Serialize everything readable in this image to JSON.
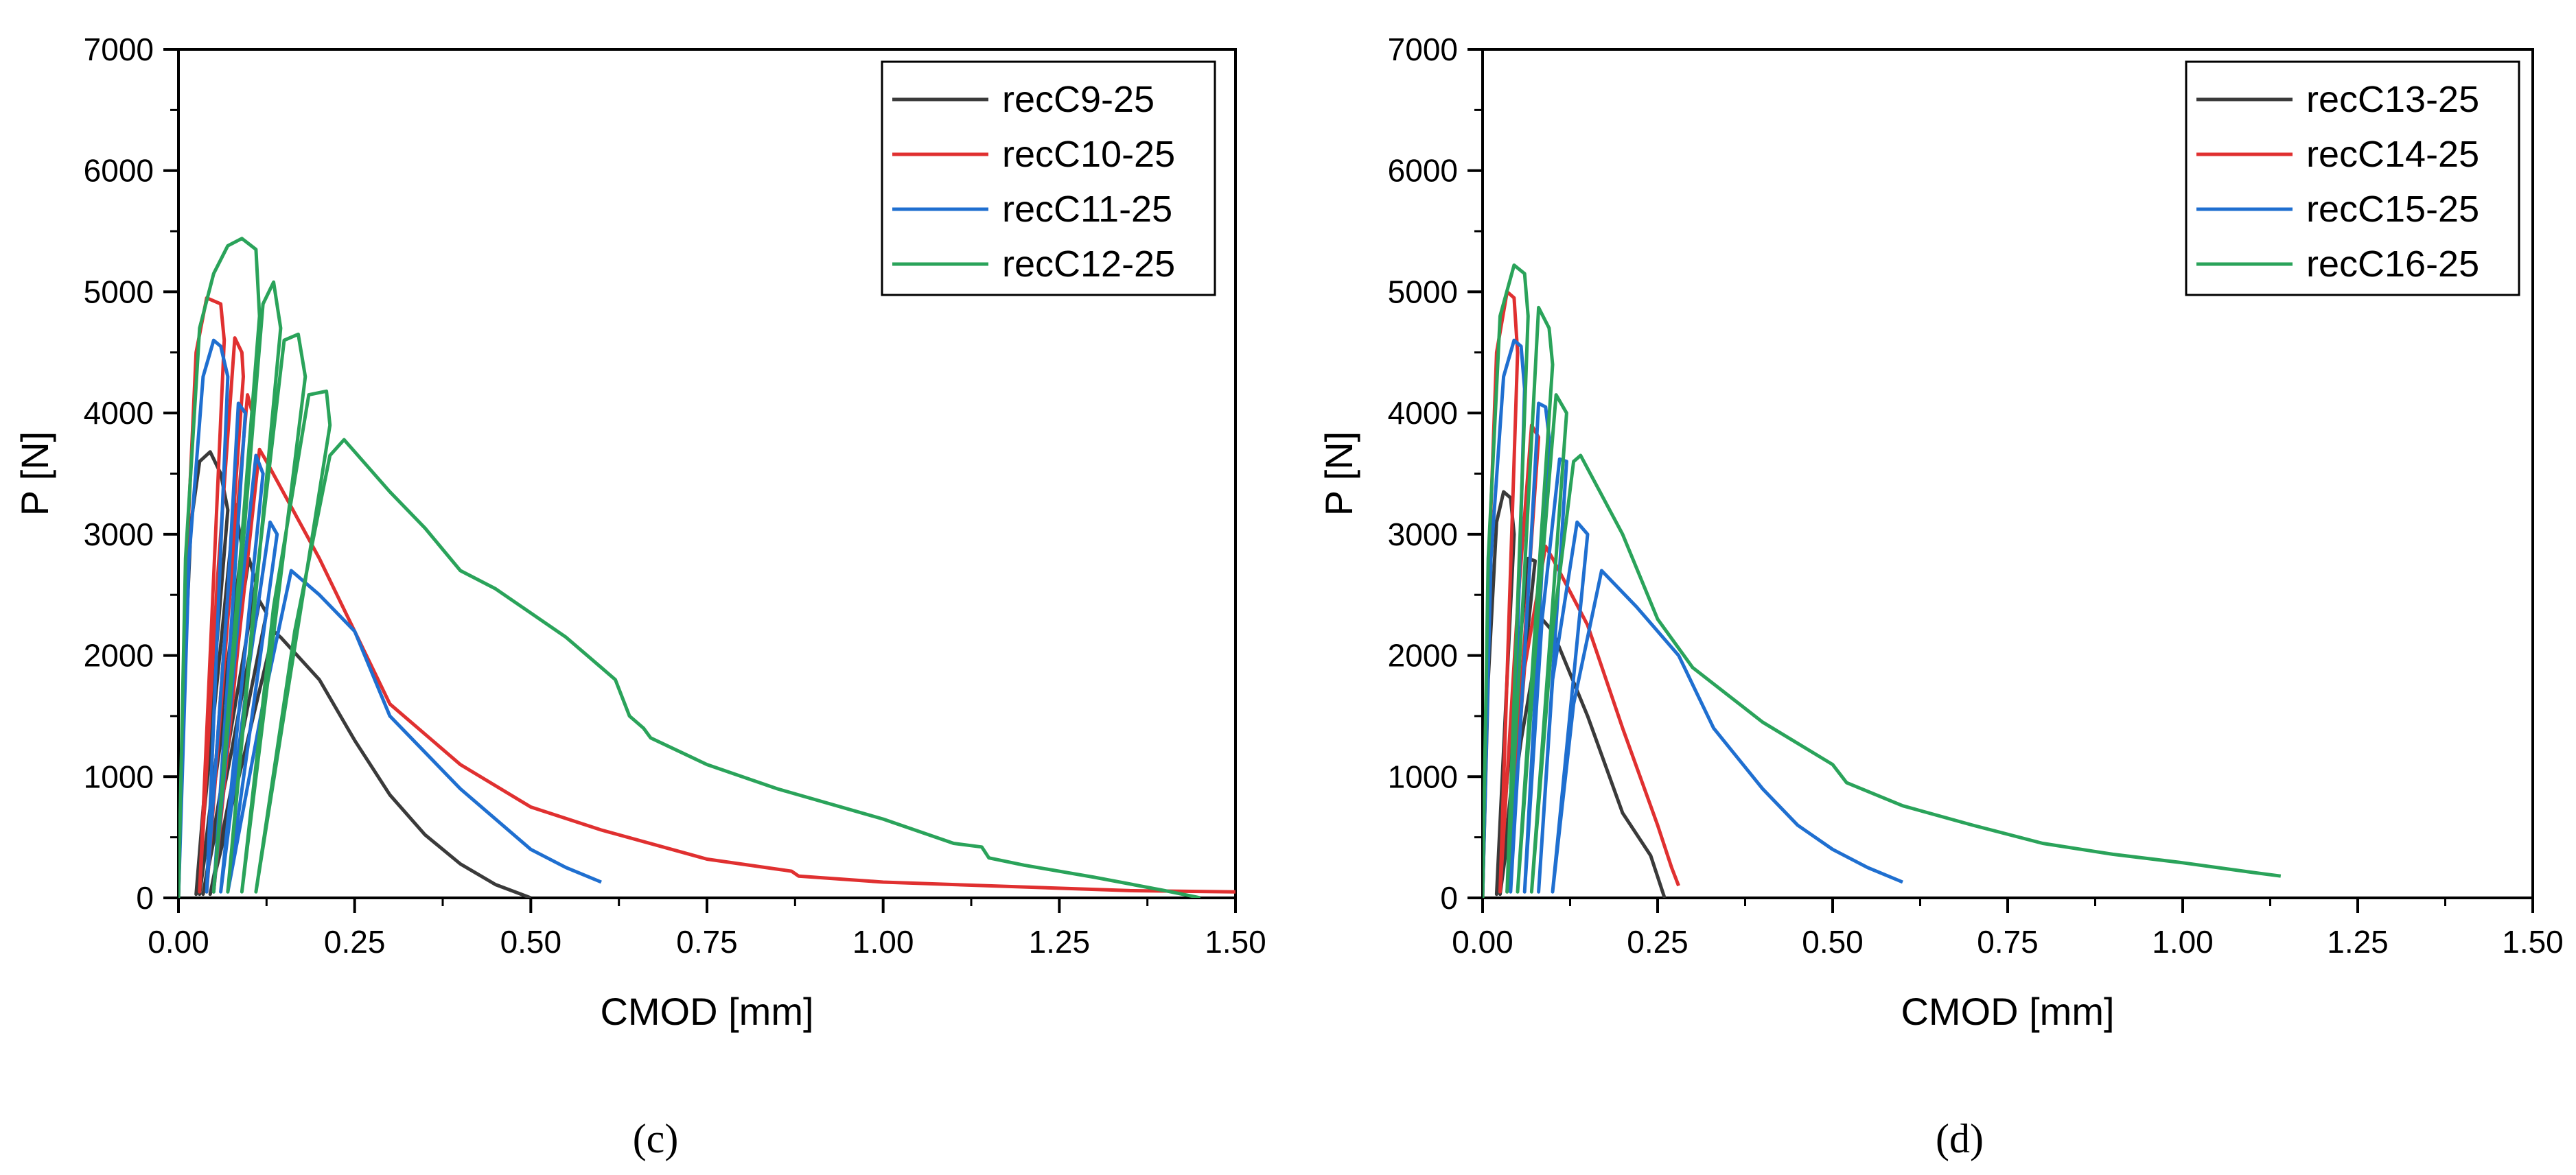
{
  "figure": {
    "panel_labels": [
      "(c)",
      "(d)"
    ]
  },
  "chart_data": [
    {
      "type": "line",
      "panel": "(c)",
      "xlabel": "CMOD [mm]",
      "ylabel": "P [N]",
      "xlim": [
        0,
        1.5
      ],
      "ylim": [
        0,
        7000
      ],
      "xticks": [
        0,
        0.25,
        0.5,
        0.75,
        1.0,
        1.25,
        1.5
      ],
      "xtick_labels": [
        "0.00",
        "0.25",
        "0.50",
        "0.75",
        "1.00",
        "1.25",
        "1.50"
      ],
      "yticks": [
        0,
        1000,
        2000,
        3000,
        4000,
        5000,
        6000,
        7000
      ],
      "ytick_labels": [
        "0",
        "1000",
        "2000",
        "3000",
        "4000",
        "5000",
        "6000",
        "7000"
      ],
      "legend_position": "top-right",
      "series": [
        {
          "name": "recC9-25",
          "color": "#3a3a3a",
          "points": [
            [
              0,
              0
            ],
            [
              0.008,
              1800
            ],
            [
              0.018,
              3100
            ],
            [
              0.03,
              3600
            ],
            [
              0.045,
              3680
            ],
            [
              0.06,
              3500
            ],
            [
              0.07,
              3200
            ],
            [
              0.025,
              30
            ],
            [
              0.05,
              1500
            ],
            [
              0.08,
              3250
            ],
            [
              0.09,
              2900
            ],
            [
              0.03,
              30
            ],
            [
              0.06,
              1300
            ],
            [
              0.1,
              2800
            ],
            [
              0.11,
              2600
            ],
            [
              0.035,
              30
            ],
            [
              0.075,
              1200
            ],
            [
              0.115,
              2450
            ],
            [
              0.125,
              2350
            ],
            [
              0.045,
              30
            ],
            [
              0.09,
              1100
            ],
            [
              0.135,
              2200
            ],
            [
              0.145,
              2150
            ],
            [
              0.2,
              1800
            ],
            [
              0.25,
              1300
            ],
            [
              0.3,
              850
            ],
            [
              0.35,
              520
            ],
            [
              0.4,
              280
            ],
            [
              0.45,
              110
            ],
            [
              0.5,
              0
            ]
          ]
        },
        {
          "name": "recC10-25",
          "color": "#e03030",
          "points": [
            [
              0,
              0
            ],
            [
              0.01,
              2600
            ],
            [
              0.025,
              4500
            ],
            [
              0.04,
              4950
            ],
            [
              0.06,
              4900
            ],
            [
              0.065,
              4600
            ],
            [
              0.03,
              50
            ],
            [
              0.055,
              2600
            ],
            [
              0.08,
              4620
            ],
            [
              0.09,
              4500
            ],
            [
              0.092,
              4300
            ],
            [
              0.04,
              50
            ],
            [
              0.07,
              2300
            ],
            [
              0.098,
              4150
            ],
            [
              0.105,
              4000
            ],
            [
              0.05,
              50
            ],
            [
              0.085,
              2100
            ],
            [
              0.115,
              3700
            ],
            [
              0.125,
              3600
            ],
            [
              0.2,
              2800
            ],
            [
              0.3,
              1600
            ],
            [
              0.4,
              1100
            ],
            [
              0.5,
              750
            ],
            [
              0.6,
              560
            ],
            [
              0.7,
              400
            ],
            [
              0.75,
              320
            ],
            [
              0.87,
              220
            ],
            [
              0.88,
              180
            ],
            [
              1.0,
              130
            ],
            [
              1.2,
              90
            ],
            [
              1.35,
              60
            ],
            [
              1.5,
              50
            ]
          ]
        },
        {
          "name": "recC11-25",
          "color": "#1f6fd0",
          "points": [
            [
              0,
              0
            ],
            [
              0.015,
              2800
            ],
            [
              0.035,
              4300
            ],
            [
              0.05,
              4600
            ],
            [
              0.06,
              4550
            ],
            [
              0.07,
              4300
            ],
            [
              0.04,
              50
            ],
            [
              0.07,
              2500
            ],
            [
              0.085,
              4080
            ],
            [
              0.095,
              4000
            ],
            [
              0.05,
              50
            ],
            [
              0.085,
              2300
            ],
            [
              0.11,
              3650
            ],
            [
              0.12,
              3500
            ],
            [
              0.06,
              50
            ],
            [
              0.1,
              1900
            ],
            [
              0.13,
              3100
            ],
            [
              0.14,
              3000
            ],
            [
              0.07,
              50
            ],
            [
              0.12,
              1600
            ],
            [
              0.16,
              2700
            ],
            [
              0.2,
              2500
            ],
            [
              0.25,
              2200
            ],
            [
              0.3,
              1500
            ],
            [
              0.4,
              900
            ],
            [
              0.5,
              400
            ],
            [
              0.55,
              250
            ],
            [
              0.6,
              130
            ]
          ]
        },
        {
          "name": "recC12-25",
          "color": "#2aa35a",
          "points": [
            [
              0,
              0
            ],
            [
              0.01,
              2800
            ],
            [
              0.03,
              4700
            ],
            [
              0.05,
              5150
            ],
            [
              0.07,
              5380
            ],
            [
              0.09,
              5440
            ],
            [
              0.11,
              5350
            ],
            [
              0.115,
              4800
            ],
            [
              0.05,
              50
            ],
            [
              0.09,
              2800
            ],
            [
              0.12,
              4900
            ],
            [
              0.135,
              5080
            ],
            [
              0.145,
              4700
            ],
            [
              0.07,
              50
            ],
            [
              0.11,
              2600
            ],
            [
              0.15,
              4600
            ],
            [
              0.17,
              4650
            ],
            [
              0.18,
              4300
            ],
            [
              0.09,
              50
            ],
            [
              0.135,
              2400
            ],
            [
              0.185,
              4150
            ],
            [
              0.21,
              4180
            ],
            [
              0.215,
              3900
            ],
            [
              0.11,
              50
            ],
            [
              0.165,
              2200
            ],
            [
              0.215,
              3650
            ],
            [
              0.235,
              3780
            ],
            [
              0.3,
              3350
            ],
            [
              0.35,
              3050
            ],
            [
              0.4,
              2700
            ],
            [
              0.45,
              2550
            ],
            [
              0.5,
              2350
            ],
            [
              0.55,
              2150
            ],
            [
              0.6,
              1900
            ],
            [
              0.62,
              1800
            ],
            [
              0.64,
              1500
            ],
            [
              0.66,
              1400
            ],
            [
              0.67,
              1320
            ],
            [
              0.75,
              1100
            ],
            [
              0.85,
              900
            ],
            [
              1.0,
              650
            ],
            [
              1.1,
              450
            ],
            [
              1.14,
              420
            ],
            [
              1.15,
              330
            ],
            [
              1.2,
              270
            ],
            [
              1.3,
              170
            ],
            [
              1.4,
              60
            ],
            [
              1.45,
              0
            ]
          ]
        }
      ]
    },
    {
      "type": "line",
      "panel": "(d)",
      "xlabel": "CMOD [mm]",
      "ylabel": "P [N]",
      "xlim": [
        0,
        1.5
      ],
      "ylim": [
        0,
        7000
      ],
      "xticks": [
        0,
        0.25,
        0.5,
        0.75,
        1.0,
        1.25,
        1.5
      ],
      "xtick_labels": [
        "0.00",
        "0.25",
        "0.50",
        "0.75",
        "1.00",
        "1.25",
        "1.50"
      ],
      "yticks": [
        0,
        1000,
        2000,
        3000,
        4000,
        5000,
        6000,
        7000
      ],
      "ytick_labels": [
        "0",
        "1000",
        "2000",
        "3000",
        "4000",
        "5000",
        "6000",
        "7000"
      ],
      "legend_position": "top-right",
      "series": [
        {
          "name": "recC13-25",
          "color": "#3a3a3a",
          "points": [
            [
              0,
              0
            ],
            [
              0.008,
              1800
            ],
            [
              0.02,
              3100
            ],
            [
              0.03,
              3350
            ],
            [
              0.04,
              3300
            ],
            [
              0.045,
              3000
            ],
            [
              0.02,
              30
            ],
            [
              0.045,
              1600
            ],
            [
              0.065,
              2800
            ],
            [
              0.075,
              2780
            ],
            [
              0.025,
              30
            ],
            [
              0.055,
              1300
            ],
            [
              0.085,
              2300
            ],
            [
              0.1,
              2200
            ],
            [
              0.15,
              1500
            ],
            [
              0.2,
              700
            ],
            [
              0.24,
              350
            ],
            [
              0.26,
              0
            ]
          ]
        },
        {
          "name": "recC14-25",
          "color": "#e03030",
          "points": [
            [
              0,
              0
            ],
            [
              0.008,
              2600
            ],
            [
              0.02,
              4500
            ],
            [
              0.035,
              5000
            ],
            [
              0.045,
              4950
            ],
            [
              0.05,
              4500
            ],
            [
              0.025,
              50
            ],
            [
              0.05,
              2400
            ],
            [
              0.07,
              3900
            ],
            [
              0.08,
              3800
            ],
            [
              0.035,
              50
            ],
            [
              0.06,
              1900
            ],
            [
              0.09,
              2900
            ],
            [
              0.1,
              2800
            ],
            [
              0.15,
              2250
            ],
            [
              0.2,
              1400
            ],
            [
              0.25,
              600
            ],
            [
              0.27,
              250
            ],
            [
              0.28,
              100
            ]
          ]
        },
        {
          "name": "recC15-25",
          "color": "#1f6fd0",
          "points": [
            [
              0,
              0
            ],
            [
              0.012,
              2800
            ],
            [
              0.03,
              4300
            ],
            [
              0.045,
              4600
            ],
            [
              0.055,
              4550
            ],
            [
              0.06,
              4200
            ],
            [
              0.04,
              50
            ],
            [
              0.065,
              2500
            ],
            [
              0.08,
              4080
            ],
            [
              0.09,
              4050
            ],
            [
              0.095,
              3800
            ],
            [
              0.06,
              50
            ],
            [
              0.085,
              2300
            ],
            [
              0.11,
              3620
            ],
            [
              0.12,
              3600
            ],
            [
              0.08,
              50
            ],
            [
              0.1,
              1800
            ],
            [
              0.135,
              3100
            ],
            [
              0.15,
              3000
            ],
            [
              0.1,
              50
            ],
            [
              0.13,
              1600
            ],
            [
              0.17,
              2700
            ],
            [
              0.22,
              2400
            ],
            [
              0.28,
              2000
            ],
            [
              0.33,
              1400
            ],
            [
              0.4,
              900
            ],
            [
              0.45,
              600
            ],
            [
              0.5,
              400
            ],
            [
              0.55,
              250
            ],
            [
              0.6,
              130
            ]
          ]
        },
        {
          "name": "recC16-25",
          "color": "#2aa35a",
          "points": [
            [
              0,
              0
            ],
            [
              0.008,
              2800
            ],
            [
              0.025,
              4800
            ],
            [
              0.045,
              5220
            ],
            [
              0.06,
              5150
            ],
            [
              0.065,
              4800
            ],
            [
              0.035,
              50
            ],
            [
              0.06,
              2700
            ],
            [
              0.08,
              4870
            ],
            [
              0.095,
              4700
            ],
            [
              0.1,
              4400
            ],
            [
              0.05,
              50
            ],
            [
              0.08,
              2400
            ],
            [
              0.105,
              4150
            ],
            [
              0.12,
              4000
            ],
            [
              0.07,
              50
            ],
            [
              0.1,
              2200
            ],
            [
              0.13,
              3600
            ],
            [
              0.14,
              3650
            ],
            [
              0.2,
              3000
            ],
            [
              0.25,
              2300
            ],
            [
              0.3,
              1900
            ],
            [
              0.4,
              1450
            ],
            [
              0.5,
              1100
            ],
            [
              0.52,
              950
            ],
            [
              0.6,
              760
            ],
            [
              0.7,
              600
            ],
            [
              0.8,
              450
            ],
            [
              0.9,
              360
            ],
            [
              1.0,
              290
            ],
            [
              1.1,
              210
            ],
            [
              1.14,
              180
            ]
          ]
        }
      ]
    }
  ]
}
